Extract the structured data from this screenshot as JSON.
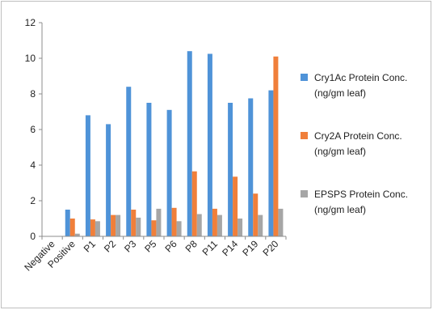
{
  "chart_data": {
    "type": "bar",
    "categories": [
      "Negative",
      "Positive",
      "P1",
      "P2",
      "P3",
      "P5",
      "P6",
      "P8",
      "P11",
      "P14",
      "P19",
      "P20"
    ],
    "series": [
      {
        "name": "Cry1Ac Protein Conc. (ng/gm leaf)",
        "name_lines": [
          "Cry1Ac Protein Conc.",
          "(ng/gm leaf)"
        ],
        "color": "#4f93d8",
        "values": [
          0,
          1.5,
          6.8,
          6.3,
          8.4,
          7.5,
          7.1,
          10.4,
          10.25,
          7.5,
          7.75,
          8.2
        ]
      },
      {
        "name": "Cry2A Protein Conc. (ng/gm leaf)",
        "name_lines": [
          "Cry2A Protein Conc.",
          "(ng/gm leaf)"
        ],
        "color": "#f07f3a",
        "values": [
          0,
          1.0,
          0.95,
          1.2,
          1.5,
          0.9,
          1.6,
          3.65,
          1.55,
          3.35,
          2.4,
          10.1
        ]
      },
      {
        "name": "EPSPS Protein Conc. (ng/gm leaf)",
        "name_lines": [
          "EPSPS Protein Conc.",
          "(ng/gm leaf)"
        ],
        "color": "#a6a6a6",
        "values": [
          0,
          0.15,
          0.85,
          1.2,
          1.05,
          1.55,
          0.85,
          1.25,
          1.2,
          1.0,
          1.2,
          1.55
        ]
      }
    ],
    "yticks": [
      "0",
      "2",
      "4",
      "6",
      "8",
      "10",
      "12"
    ],
    "ylim": [
      0,
      12
    ],
    "grid": false,
    "legend": "right"
  }
}
